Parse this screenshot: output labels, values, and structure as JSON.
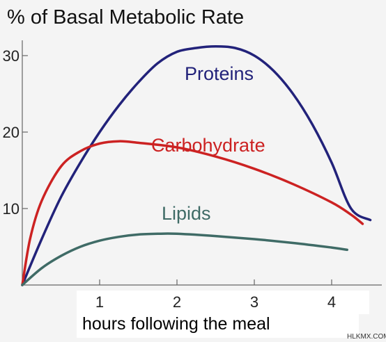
{
  "chart_data": {
    "type": "line",
    "title": "% of Basal Metabolic Rate",
    "xlabel": "hours following the meal",
    "ylabel": "",
    "xlim": [
      0,
      4.6
    ],
    "ylim": [
      0,
      31
    ],
    "x_ticks": [
      "1",
      "2",
      "3",
      "4"
    ],
    "y_ticks": [
      "30",
      "20",
      "10"
    ],
    "grid": false,
    "series": [
      {
        "name": "Proteins",
        "color": "#22227a",
        "x": [
          0,
          0.25,
          0.5,
          0.75,
          1.0,
          1.25,
          1.5,
          1.75,
          2.0,
          2.25,
          2.5,
          2.75,
          3.0,
          3.25,
          3.5,
          3.75,
          4.0,
          4.25,
          4.5
        ],
        "values": [
          0,
          6.0,
          11.5,
          16.0,
          20.0,
          23.5,
          26.5,
          29.0,
          30.5,
          31.0,
          31.2,
          31.0,
          30.0,
          28.0,
          25.0,
          21.0,
          16.0,
          10.0,
          8.5
        ]
      },
      {
        "name": "Carbohydrate",
        "color": "#cc2222",
        "x": [
          0,
          0.1,
          0.25,
          0.5,
          0.75,
          1.0,
          1.25,
          1.5,
          2.0,
          2.5,
          3.0,
          3.5,
          4.0,
          4.25,
          4.4
        ],
        "values": [
          0,
          6.0,
          11.0,
          15.5,
          17.5,
          18.5,
          18.8,
          18.6,
          18.0,
          16.8,
          15.2,
          13.2,
          10.8,
          9.2,
          8.0
        ]
      },
      {
        "name": "Lipids",
        "color": "#3f6b66",
        "x": [
          0,
          0.25,
          0.5,
          0.75,
          1.0,
          1.25,
          1.5,
          1.75,
          2.0,
          2.5,
          3.0,
          3.5,
          4.0,
          4.2
        ],
        "values": [
          0,
          2.2,
          3.8,
          5.0,
          5.8,
          6.3,
          6.6,
          6.7,
          6.7,
          6.4,
          6.0,
          5.5,
          4.9,
          4.6
        ]
      }
    ]
  },
  "watermark": "HLKMX.COM"
}
